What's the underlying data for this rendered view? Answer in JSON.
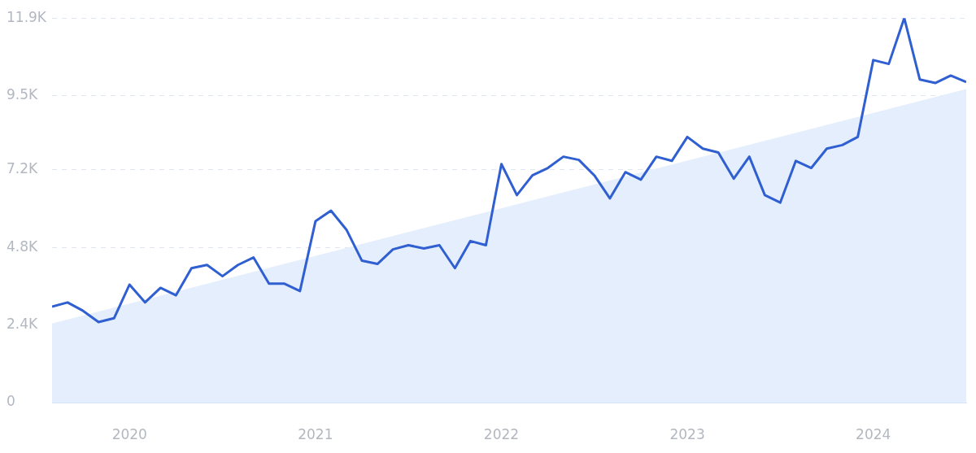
{
  "chart_data": {
    "type": "line",
    "x": [
      "2019-08",
      "2019-09",
      "2019-10",
      "2019-11",
      "2019-12",
      "2020-01",
      "2020-02",
      "2020-03",
      "2020-04",
      "2020-05",
      "2020-06",
      "2020-07",
      "2020-08",
      "2020-09",
      "2020-10",
      "2020-11",
      "2020-12",
      "2021-01",
      "2021-02",
      "2021-03",
      "2021-04",
      "2021-05",
      "2021-06",
      "2021-07",
      "2021-08",
      "2021-09",
      "2021-10",
      "2021-11",
      "2021-12",
      "2022-01",
      "2022-02",
      "2022-03",
      "2022-04",
      "2022-05",
      "2022-06",
      "2022-07",
      "2022-08",
      "2022-09",
      "2022-10",
      "2022-11",
      "2022-12",
      "2023-01",
      "2023-02",
      "2023-03",
      "2023-04",
      "2023-05",
      "2023-06",
      "2023-07",
      "2023-08",
      "2023-09",
      "2023-10",
      "2023-11",
      "2023-12",
      "2024-01",
      "2024-02",
      "2024-03",
      "2024-04",
      "2024-05",
      "2024-06",
      "2024-07"
    ],
    "series": [
      {
        "type": "area",
        "color": "#e4eefc",
        "x": [
          "2019-08",
          "2024-07"
        ],
        "values": [
          2450,
          9700
        ]
      },
      {
        "color": "#2f5fd0",
        "values": [
          2970,
          3100,
          2840,
          2490,
          2610,
          3650,
          3100,
          3550,
          3320,
          4160,
          4260,
          3910,
          4260,
          4490,
          3680,
          3680,
          3450,
          5610,
          5940,
          5350,
          4390,
          4290,
          4740,
          4870,
          4770,
          4870,
          4160,
          5000,
          4870,
          7380,
          6420,
          7030,
          7260,
          7610,
          7510,
          7030,
          6320,
          7130,
          6900,
          7610,
          7480,
          8220,
          7860,
          7740,
          6930,
          7610,
          6420,
          6190,
          7480,
          7260,
          7860,
          7970,
          8220,
          10600,
          10480,
          11900,
          10000,
          9890,
          10120,
          9920
        ]
      }
    ],
    "xlim": [
      "2019-08",
      "2024-07"
    ],
    "xticks": [
      "2020",
      "2021",
      "2022",
      "2023",
      "2024"
    ],
    "ylim": [
      0,
      11900
    ],
    "yticks": [
      0,
      {
        "value": 2400,
        "label": "2.4K"
      },
      {
        "value": 4800,
        "label": "4.8K"
      },
      {
        "value": 7200,
        "label": "7.2K"
      },
      {
        "value": 9500,
        "label": "9.5K"
      },
      {
        "value": 11900,
        "label": "11.9K"
      }
    ],
    "grid": "y",
    "legend": false,
    "marker": "none",
    "line_style": "solid"
  }
}
